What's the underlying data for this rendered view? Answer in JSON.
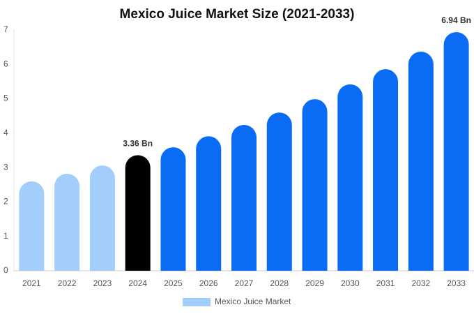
{
  "chart_data": {
    "type": "bar",
    "title": "Mexico Juice Market Size (2021-2033)",
    "categories": [
      "2021",
      "2022",
      "2023",
      "2024",
      "2025",
      "2026",
      "2027",
      "2028",
      "2029",
      "2030",
      "2031",
      "2032",
      "2033"
    ],
    "series": [
      {
        "name": "Mexico Juice Market",
        "color": "#a3cdfb",
        "values": [
          2.6,
          2.82,
          3.06,
          3.36,
          3.59,
          3.91,
          4.24,
          4.6,
          4.99,
          5.42,
          5.86,
          6.37,
          6.94
        ],
        "colors": [
          "#a3cdfb",
          "#a3cdfb",
          "#a3cdfb",
          "#000000",
          "#0a6cf5",
          "#0a6cf5",
          "#0a6cf5",
          "#0a6cf5",
          "#0a6cf5",
          "#0a6cf5",
          "#0a6cf5",
          "#0a6cf5",
          "#0a6cf5"
        ],
        "value_labels": [
          null,
          null,
          null,
          "3.36 Bn",
          null,
          null,
          null,
          null,
          null,
          null,
          null,
          null,
          "6.94 Bn"
        ]
      }
    ],
    "ylim": [
      0,
      7
    ],
    "yticks": [
      0,
      1,
      2,
      3,
      4,
      5,
      6,
      7
    ],
    "grid": false,
    "legend": "bottom"
  }
}
